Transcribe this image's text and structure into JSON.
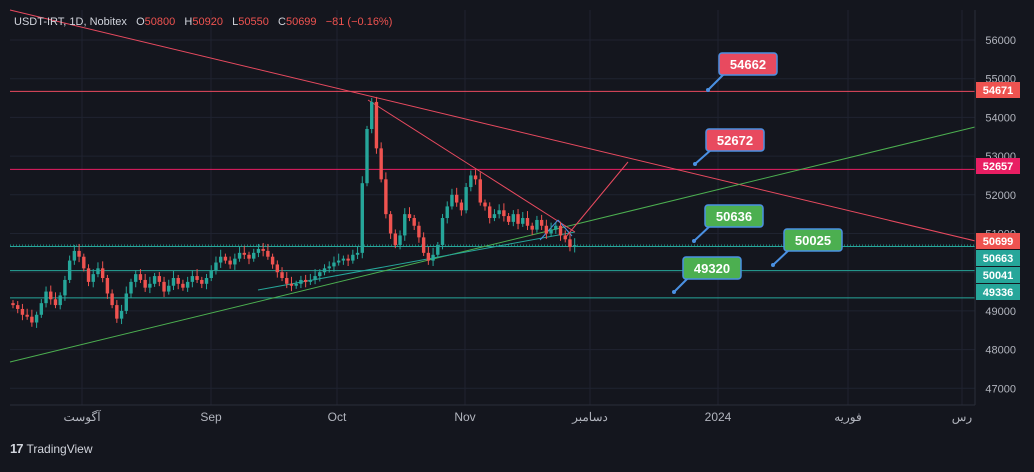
{
  "header": {
    "symbol": "USDT-IRT, 1D, Nobitex",
    "o_label": "O",
    "o_value": "50800",
    "h_label": "H",
    "h_value": "50920",
    "l_label": "L",
    "l_value": "50550",
    "c_label": "C",
    "c_value": "50699",
    "change": "−81 (−0.16%)"
  },
  "footer": {
    "logo": "17",
    "brand": "TradingView"
  },
  "colors": {
    "background": "#14161e",
    "up": "#26a69a",
    "down": "#ef5350",
    "grid": "#1f2330",
    "red_line": "#e84a5f",
    "green_line": "#4caf50",
    "teal_line": "#26a69a"
  },
  "chart_data": {
    "type": "candlestick",
    "y_axis": {
      "ticks": [
        "56000",
        "55000",
        "54000",
        "53000",
        "52000",
        "51000",
        "50000",
        "49000",
        "48000",
        "47000"
      ],
      "range": [
        46400,
        56800
      ]
    },
    "x_axis": {
      "tick_labels": [
        "آگوست",
        "Sep",
        "Oct",
        "Nov",
        "دسامبر",
        "2024",
        "فوریه",
        "رس"
      ]
    },
    "price_labels": [
      {
        "text": "54671",
        "value": 54671,
        "color": "#ef5350"
      },
      {
        "text": "52657",
        "value": 52657,
        "color": "#e91e63"
      },
      {
        "text": "50699",
        "value": 50699,
        "color": "#ef5350"
      },
      {
        "text": "50663",
        "value": 50663,
        "color": "#26a69a"
      },
      {
        "text": "50041",
        "value": 50041,
        "color": "#26a69a"
      },
      {
        "text": "49336",
        "value": 49336,
        "color": "#26a69a"
      }
    ],
    "horizontal_levels": [
      {
        "value": 54671,
        "color": "#e84a5f"
      },
      {
        "value": 52657,
        "color": "#e91e63"
      },
      {
        "value": 50663,
        "color": "#26a69a"
      },
      {
        "value": 50041,
        "color": "#26a69a"
      },
      {
        "value": 49336,
        "color": "#26a69a"
      }
    ],
    "callouts": [
      {
        "text": "54662",
        "value": 54662,
        "color": "#e84a5f"
      },
      {
        "text": "52672",
        "value": 52672,
        "color": "#e84a5f"
      },
      {
        "text": "50636",
        "value": 50636,
        "color": "#4caf50"
      },
      {
        "text": "50025",
        "value": 50025,
        "color": "#4caf50"
      },
      {
        "text": "49320",
        "value": 49320,
        "color": "#4caf50"
      }
    ],
    "last_close": 50699
  }
}
